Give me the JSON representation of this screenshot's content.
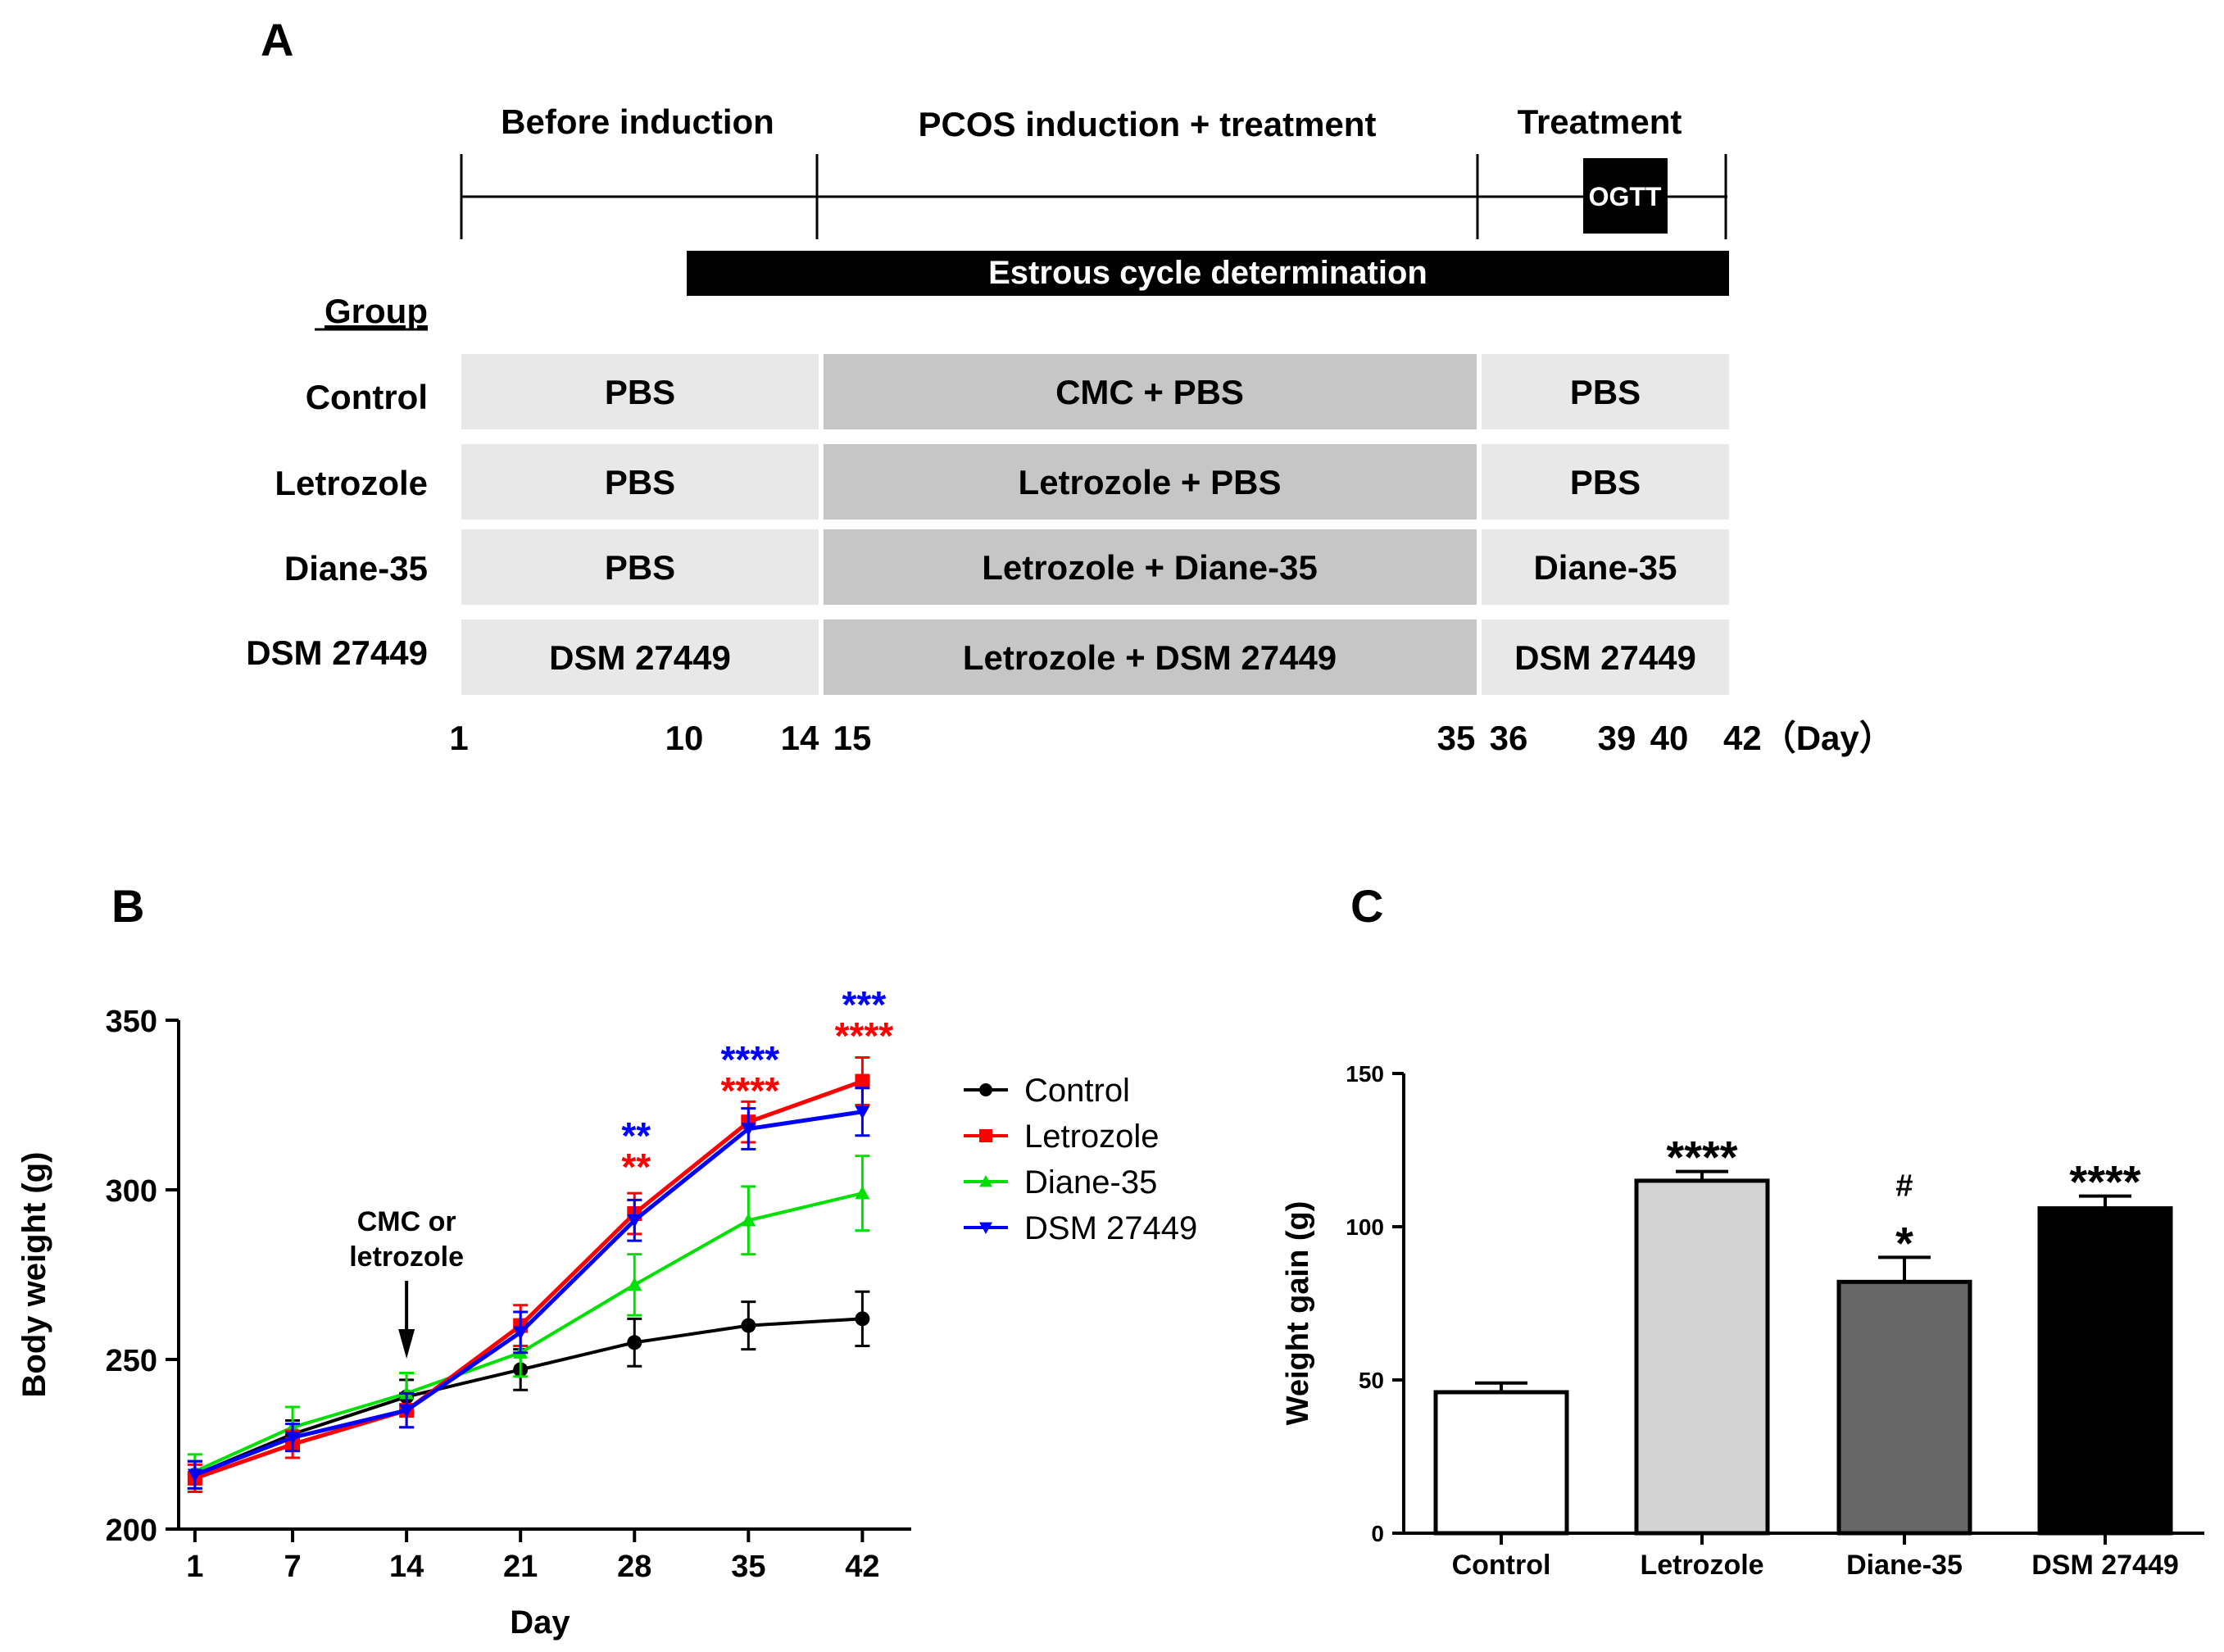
{
  "panel_labels": {
    "a": "A",
    "b": "B",
    "c": "C"
  },
  "timeline": {
    "phases": [
      "Before induction",
      "PCOS induction + treatment",
      "Treatment"
    ],
    "ogtt": "OGTT",
    "estrous": "Estrous cycle determination",
    "group_header": "Group",
    "groups": [
      {
        "name": "Control",
        "cells": [
          "PBS",
          "CMC + PBS",
          "PBS"
        ]
      },
      {
        "name": "Letrozole",
        "cells": [
          "PBS",
          "Letrozole + PBS",
          "PBS"
        ]
      },
      {
        "name": "Diane-35",
        "cells": [
          "PBS",
          "Letrozole + Diane-35",
          "Diane-35"
        ]
      },
      {
        "name": "DSM 27449",
        "cells": [
          "DSM 27449",
          "Letrozole + DSM 27449",
          "DSM 27449"
        ]
      }
    ],
    "days": [
      "1",
      "10",
      "14",
      "15",
      "35",
      "36",
      "39",
      "40",
      "42（Day）"
    ]
  },
  "chart_data": [
    {
      "type": "line",
      "title": "",
      "xlabel": "Day",
      "ylabel": "Body weight (g)",
      "x": [
        1,
        7,
        14,
        21,
        28,
        35,
        42
      ],
      "xlim": [
        0,
        45
      ],
      "ylim": [
        200,
        350
      ],
      "yticks": [
        200,
        250,
        300,
        350
      ],
      "grid": false,
      "legend_position": "right",
      "annotation": {
        "line1": "CMC or",
        "line2": "letrozole",
        "day": 14
      },
      "series": [
        {
          "name": "Control",
          "color": "#000000",
          "marker": "circle",
          "values": [
            216,
            228,
            239,
            247,
            255,
            260,
            262
          ],
          "errors": [
            4,
            4,
            5,
            6,
            7,
            7,
            8
          ]
        },
        {
          "name": "Letrozole",
          "color": "#ff0000",
          "marker": "square",
          "values": [
            215,
            225,
            235,
            260,
            293,
            320,
            332
          ],
          "errors": [
            4,
            4,
            5,
            6,
            6,
            6,
            7
          ]
        },
        {
          "name": "Diane-35",
          "color": "#00e000",
          "marker": "triangle-up",
          "values": [
            217,
            230,
            240,
            252,
            272,
            291,
            299
          ],
          "errors": [
            5,
            6,
            6,
            7,
            9,
            10,
            11
          ]
        },
        {
          "name": "DSM 27449",
          "color": "#0000ff",
          "marker": "triangle-down",
          "values": [
            216,
            227,
            235,
            258,
            291,
            318,
            323
          ],
          "errors": [
            4,
            4,
            5,
            6,
            6,
            6,
            7
          ]
        }
      ],
      "significance": [
        {
          "x": 28,
          "blue": "**",
          "red": "**"
        },
        {
          "x": 35,
          "blue": "****",
          "red": "****"
        },
        {
          "x": 42,
          "blue": "***",
          "red": "****"
        }
      ]
    },
    {
      "type": "bar",
      "title": "",
      "xlabel": "",
      "ylabel": "Weight gain (g)",
      "categories": [
        "Control",
        "Letrozole",
        "Diane-35",
        "DSM 27449"
      ],
      "values": [
        46,
        115,
        82,
        106
      ],
      "errors": [
        3,
        3,
        8,
        4
      ],
      "colors": [
        "#ffffff",
        "#d3d3d3",
        "#666666",
        "#000000"
      ],
      "ylim": [
        0,
        150
      ],
      "yticks": [
        0,
        50,
        100,
        150
      ],
      "significance": [
        "",
        "****",
        "*",
        "****"
      ],
      "hash_marks": [
        "",
        "",
        "#",
        ""
      ]
    }
  ]
}
